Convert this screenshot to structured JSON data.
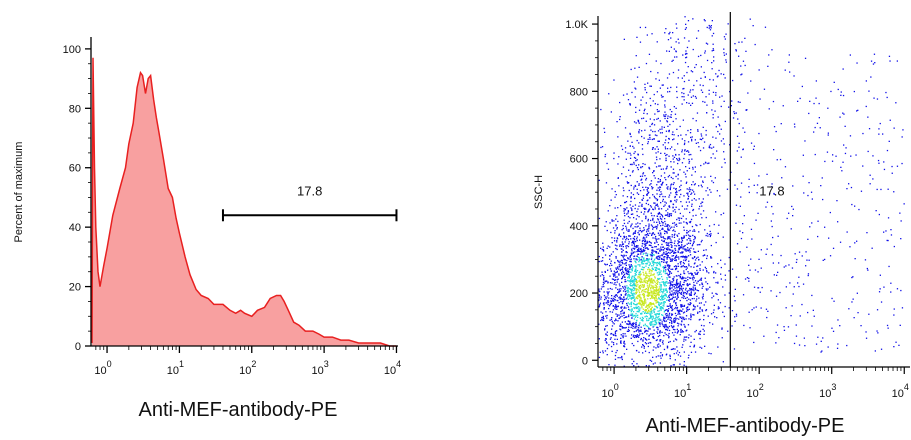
{
  "colors": {
    "histogram_fill": "#f8a0a0",
    "histogram_line": "#e82020",
    "axis": "#000000",
    "dot_low": "#1010e8",
    "dot_mid": "#20d8d8",
    "dot_high": "#c8e820"
  },
  "chart_data": [
    {
      "type": "area",
      "xlabel": "Anti-MEF-antibody-PE",
      "ylabel": "Percent of maximum",
      "x_scale": "log",
      "xlim": [
        0.6,
        10500
      ],
      "ylim": [
        0,
        104
      ],
      "x_ticks": [
        {
          "value": 1,
          "base": "10",
          "exp": "0"
        },
        {
          "value": 10,
          "base": "10",
          "exp": "1"
        },
        {
          "value": 100,
          "base": "10",
          "exp": "2"
        },
        {
          "value": 1000,
          "base": "10",
          "exp": "3"
        },
        {
          "value": 10000,
          "base": "10",
          "exp": "4"
        }
      ],
      "y_ticks": [
        "0",
        "20",
        "40",
        "60",
        "80",
        "100"
      ],
      "x": [
        0.62,
        0.64,
        0.67,
        0.7,
        0.75,
        0.8,
        0.9,
        1.0,
        1.2,
        1.5,
        1.8,
        2.0,
        2.3,
        2.6,
        2.9,
        3.1,
        3.4,
        3.7,
        4.0,
        4.4,
        4.8,
        5.2,
        6.0,
        7.0,
        8.0,
        9.0,
        10,
        12,
        14,
        17,
        20,
        25,
        30,
        40,
        50,
        60,
        70,
        80,
        100,
        120,
        150,
        180,
        220,
        250,
        280,
        320,
        380,
        450,
        550,
        700,
        850,
        1000,
        1300,
        1700,
        2200,
        3000,
        4000,
        6000,
        8000,
        10000
      ],
      "y": [
        1,
        97,
        60,
        40,
        25,
        20,
        27,
        33,
        44,
        53,
        60,
        68,
        75,
        87,
        92,
        91,
        85,
        90,
        91,
        83,
        77,
        72,
        63,
        53,
        50,
        43,
        38,
        30,
        24,
        19,
        17,
        16,
        14,
        14,
        12,
        11,
        12,
        11,
        10,
        12,
        13,
        16,
        17,
        17,
        15,
        12,
        8,
        7,
        5,
        5,
        4,
        3,
        3,
        2,
        2,
        1,
        1,
        1,
        0,
        0
      ],
      "gate": {
        "label": "17.8",
        "range": [
          40,
          10000
        ],
        "y": 44
      }
    },
    {
      "type": "scatter",
      "xlabel": "Anti-MEF-antibody-PE",
      "ylabel": "SSC-H",
      "x_scale": "log",
      "xlim": [
        0.6,
        12000
      ],
      "ylim": [
        -20,
        1024
      ],
      "x_ticks": [
        {
          "value": 1,
          "base": "10",
          "exp": "0"
        },
        {
          "value": 10,
          "base": "10",
          "exp": "1"
        },
        {
          "value": 100,
          "base": "10",
          "exp": "2"
        },
        {
          "value": 1000,
          "base": "10",
          "exp": "3"
        },
        {
          "value": 10000,
          "base": "10",
          "exp": "4"
        }
      ],
      "y_ticks": [
        {
          "value": 0,
          "label": "0"
        },
        {
          "value": 200,
          "label": "200"
        },
        {
          "value": 400,
          "label": "400"
        },
        {
          "value": 600,
          "label": "600"
        },
        {
          "value": 800,
          "label": "800"
        },
        {
          "value": 1000,
          "label": "1.0K"
        }
      ],
      "gate": {
        "x": 40,
        "label": "17.8",
        "label_pos": [
          150,
          490
        ]
      },
      "population": {
        "dense_center": [
          3,
          200
        ],
        "percent_positive": 17.8
      }
    }
  ]
}
